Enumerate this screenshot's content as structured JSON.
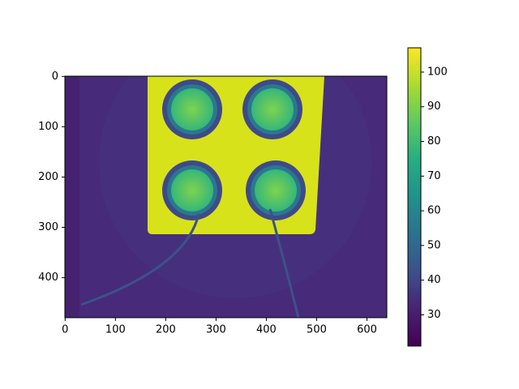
{
  "chart_data": {
    "type": "image",
    "xlim": [
      -0.5,
      639.5
    ],
    "ylim": [
      479.5,
      -0.5
    ],
    "xticks": [
      0,
      100,
      200,
      300,
      400,
      500,
      600
    ],
    "yticks": [
      0,
      100,
      200,
      300,
      400
    ],
    "colorbar": {
      "lim": [
        21,
        107
      ],
      "ticks": [
        30,
        40,
        50,
        60,
        70,
        80,
        90,
        100
      ]
    }
  }
}
